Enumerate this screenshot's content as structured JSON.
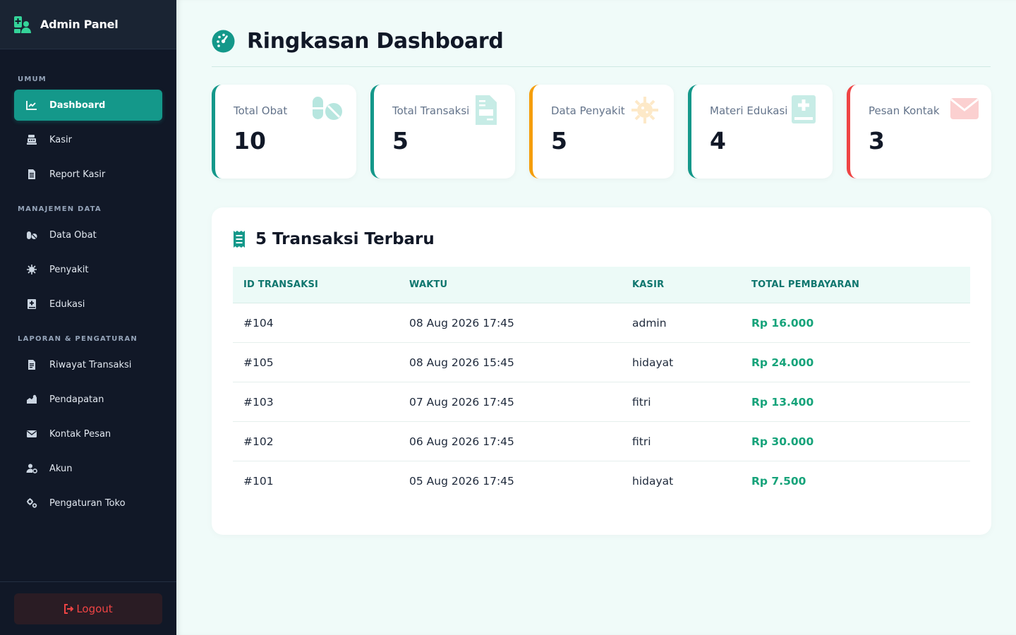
{
  "brand": {
    "title": "Admin Panel",
    "icon": "user-medical-icon"
  },
  "sidebar": {
    "sections": [
      {
        "label": "UMUM"
      },
      {
        "label": "MANAJEMEN DATA"
      },
      {
        "label": "LAPORAN & PENGATURAN"
      }
    ],
    "items": [
      {
        "label": "Dashboard",
        "icon": "chart-line-icon",
        "active": true
      },
      {
        "label": "Kasir",
        "icon": "cash-register-icon"
      },
      {
        "label": "Report Kasir",
        "icon": "file-report-icon"
      },
      {
        "label": "Data Obat",
        "icon": "pills-icon"
      },
      {
        "label": "Penyakit",
        "icon": "virus-icon"
      },
      {
        "label": "Edukasi",
        "icon": "book-medical-icon"
      },
      {
        "label": "Riwayat Transaksi",
        "icon": "file-history-icon"
      },
      {
        "label": "Pendapatan",
        "icon": "chart-area-icon"
      },
      {
        "label": "Kontak Pesan",
        "icon": "envelope-icon"
      },
      {
        "label": "Akun",
        "icon": "users-cog-icon"
      },
      {
        "label": "Pengaturan Toko",
        "icon": "cogs-icon"
      }
    ],
    "logout_label": "Logout"
  },
  "header": {
    "title": "Ringkasan Dashboard",
    "icon": "gauge-icon"
  },
  "cards": [
    {
      "label": "Total Obat",
      "value": "10",
      "icon": "pills-icon",
      "accent": "#14988a"
    },
    {
      "label": "Total Transaksi",
      "value": "5",
      "icon": "file-invoice-icon",
      "accent": "#14988a"
    },
    {
      "label": "Data Penyakit",
      "value": "5",
      "icon": "virus-icon",
      "accent": "#f59e0b"
    },
    {
      "label": "Materi Edukasi",
      "value": "4",
      "icon": "book-medical-icon",
      "accent": "#14988a"
    },
    {
      "label": "Pesan Kontak",
      "value": "3",
      "icon": "envelope-icon",
      "accent": "#ef4444"
    }
  ],
  "recent": {
    "title": "5 Transaksi Terbaru",
    "icon": "receipt-icon",
    "columns": [
      "ID TRANSAKSI",
      "WAKTU",
      "KASIR",
      "TOTAL PEMBAYARAN"
    ],
    "rows": [
      {
        "id": "#104",
        "time": "08 Aug 2026 17:45",
        "cashier": "admin",
        "total": "Rp 16.000"
      },
      {
        "id": "#105",
        "time": "08 Aug 2026 15:45",
        "cashier": "hidayat",
        "total": "Rp 24.000"
      },
      {
        "id": "#103",
        "time": "07 Aug 2026 17:45",
        "cashier": "fitri",
        "total": "Rp 13.400"
      },
      {
        "id": "#102",
        "time": "06 Aug 2026 17:45",
        "cashier": "fitri",
        "total": "Rp 30.000"
      },
      {
        "id": "#101",
        "time": "05 Aug 2026 17:45",
        "cashier": "hidayat",
        "total": "Rp 7.500"
      }
    ]
  },
  "colors": {
    "sidebar_bg": "#111827",
    "accent": "#14988a",
    "money": "#16a37a",
    "danger": "#ef4444",
    "warning": "#f59e0b"
  }
}
